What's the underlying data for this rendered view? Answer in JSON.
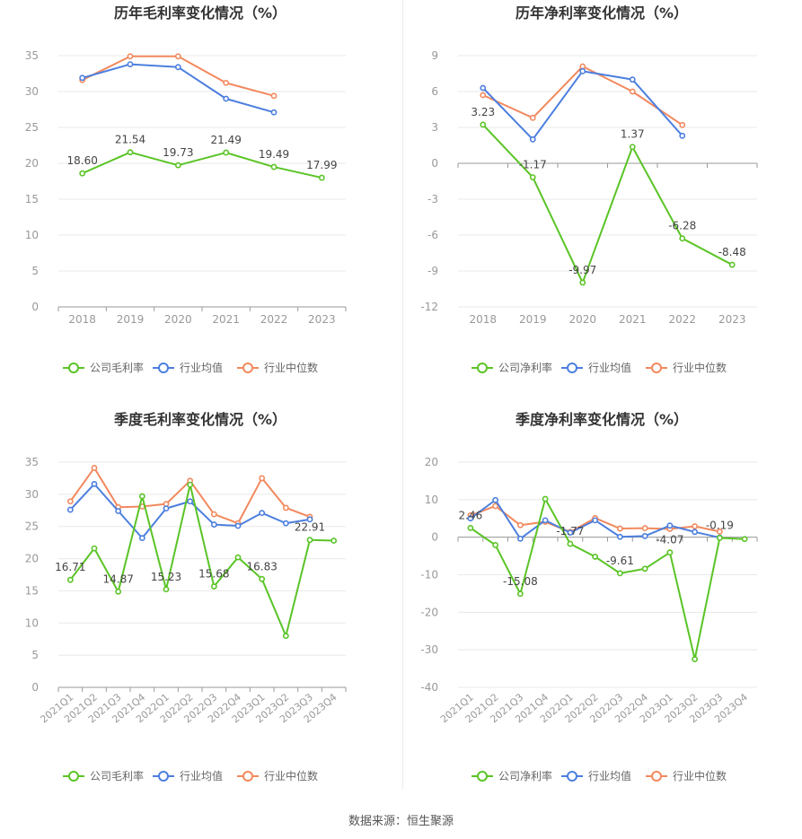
{
  "colors": {
    "company": "#5ac426",
    "avg": "#4c7fde",
    "median": "#f2895e",
    "grid": "#e8e8e8",
    "axis": "#999999",
    "tick": "#999999"
  },
  "source_text": "数据来源：恒生聚源",
  "chart_data": [
    {
      "type": "line",
      "title": "历年毛利率变化情况（%）",
      "categories": [
        "2018",
        "2019",
        "2020",
        "2021",
        "2022",
        "2023"
      ],
      "ylim": [
        0,
        35
      ],
      "yticks": [
        0,
        5,
        10,
        15,
        20,
        25,
        30,
        35
      ],
      "series": [
        {
          "name": "公司毛利率",
          "values": [
            18.6,
            21.54,
            19.73,
            21.49,
            19.49,
            17.99
          ],
          "labels": [
            "18.60",
            "21.54",
            "19.73",
            "21.49",
            "19.49",
            "17.99"
          ]
        },
        {
          "name": "行业均值",
          "values": [
            31.9,
            33.8,
            33.4,
            29.0,
            27.1,
            null
          ]
        },
        {
          "name": "行业中位数",
          "values": [
            31.6,
            34.9,
            34.9,
            31.2,
            29.4,
            null
          ]
        }
      ],
      "legend_position": "bottom",
      "grid": true
    },
    {
      "type": "line",
      "title": "历年净利率变化情况（%）",
      "categories": [
        "2018",
        "2019",
        "2020",
        "2021",
        "2022",
        "2023"
      ],
      "ylim": [
        -12,
        9
      ],
      "yticks": [
        -12,
        -9,
        -6,
        -3,
        0,
        3,
        6,
        9
      ],
      "series": [
        {
          "name": "公司净利率",
          "values": [
            3.23,
            -1.17,
            -9.97,
            1.37,
            -6.28,
            -8.48
          ],
          "labels": [
            "3.23",
            "-1.17",
            "-9.97",
            "1.37",
            "-6.28",
            "-8.48"
          ]
        },
        {
          "name": "行业均值",
          "values": [
            6.3,
            2.0,
            7.7,
            7.0,
            2.3,
            null
          ]
        },
        {
          "name": "行业中位数",
          "values": [
            5.7,
            3.8,
            8.1,
            6.0,
            3.2,
            null
          ]
        }
      ],
      "legend_position": "bottom",
      "grid": true
    },
    {
      "type": "line",
      "title": "季度毛利率变化情况（%）",
      "categories": [
        "2021Q1",
        "2021Q2",
        "2021Q3",
        "2021Q4",
        "2022Q1",
        "2022Q2",
        "2022Q3",
        "2022Q4",
        "2023Q1",
        "2023Q2",
        "2023Q3",
        "2023Q4"
      ],
      "ylim": [
        0,
        35
      ],
      "yticks": [
        0,
        5,
        10,
        15,
        20,
        25,
        30,
        35
      ],
      "series": [
        {
          "name": "公司毛利率",
          "values": [
            16.71,
            21.6,
            14.87,
            29.7,
            15.23,
            31.5,
            15.68,
            20.2,
            16.83,
            8.0,
            22.91,
            22.8
          ],
          "labels": [
            "16.71",
            null,
            "14.87",
            null,
            "15.23",
            null,
            "15.68",
            null,
            "16.83",
            null,
            "22.91",
            null
          ]
        },
        {
          "name": "行业均值",
          "values": [
            27.6,
            31.6,
            27.4,
            23.2,
            27.8,
            28.9,
            25.3,
            25.1,
            27.1,
            25.5,
            26.1,
            null
          ]
        },
        {
          "name": "行业中位数",
          "values": [
            28.9,
            34.1,
            28.0,
            28.1,
            28.5,
            32.1,
            26.9,
            25.5,
            32.5,
            27.9,
            26.5,
            null
          ]
        }
      ],
      "legend_position": "bottom",
      "grid": true
    },
    {
      "type": "line",
      "title": "季度净利率变化情况（%）",
      "categories": [
        "2021Q1",
        "2021Q2",
        "2021Q3",
        "2021Q4",
        "2022Q1",
        "2022Q2",
        "2022Q3",
        "2022Q4",
        "2023Q1",
        "2023Q2",
        "2023Q3",
        "2023Q4"
      ],
      "ylim": [
        -40,
        20
      ],
      "yticks": [
        -40,
        -30,
        -20,
        -10,
        0,
        10,
        20
      ],
      "series": [
        {
          "name": "公司净利率",
          "values": [
            2.46,
            -2.1,
            -15.08,
            10.2,
            -1.77,
            -5.2,
            -9.61,
            -8.4,
            -4.07,
            -32.5,
            -0.19,
            -0.5
          ],
          "labels": [
            "2.46",
            null,
            "-15.08",
            null,
            "-1.77",
            null,
            "-9.61",
            null,
            "-4.07",
            null,
            "-0.19",
            null
          ]
        },
        {
          "name": "行业均值",
          "values": [
            5.0,
            9.9,
            -0.4,
            4.5,
            1.2,
            4.5,
            0.1,
            0.3,
            3.1,
            1.4,
            -0.1,
            null
          ]
        },
        {
          "name": "行业中位数",
          "values": [
            5.8,
            8.3,
            3.2,
            4.1,
            1.4,
            5.1,
            2.3,
            2.4,
            2.2,
            2.9,
            1.5,
            null
          ]
        }
      ],
      "legend_position": "bottom",
      "grid": true
    }
  ]
}
